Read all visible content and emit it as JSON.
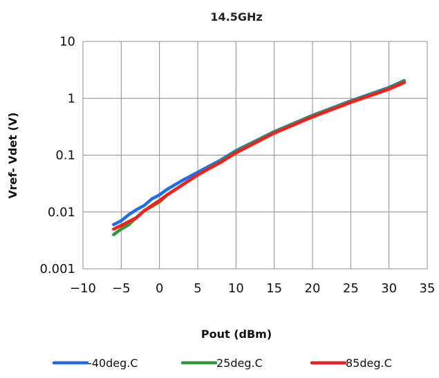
{
  "chart_data": {
    "type": "line",
    "title": "14.5GHz",
    "xlabel": "Pout (dBm)",
    "ylabel": "Vref- Vdet (V)",
    "xlim": [
      -10,
      35
    ],
    "ylim": [
      0.001,
      10
    ],
    "yscale": "log",
    "x_ticks": [
      "−10",
      "−5",
      "0",
      "5",
      "10",
      "15",
      "20",
      "25",
      "30",
      "35"
    ],
    "y_ticks": [
      "0.001",
      "0.01",
      "0.1",
      "1",
      "10"
    ],
    "grid": true,
    "legend_position": "bottom",
    "series": [
      {
        "name": "-40deg.C",
        "color": "#1a6ef5",
        "points": [
          [
            -6,
            0.006
          ],
          [
            -5,
            0.007
          ],
          [
            -4,
            0.009
          ],
          [
            -3,
            0.011
          ],
          [
            -2,
            0.013
          ],
          [
            -1,
            0.017
          ],
          [
            0,
            0.02
          ],
          [
            1,
            0.025
          ],
          [
            3,
            0.036
          ],
          [
            5,
            0.05
          ],
          [
            8,
            0.082
          ],
          [
            10,
            0.12
          ],
          [
            15,
            0.26
          ],
          [
            20,
            0.5
          ],
          [
            25,
            0.9
          ],
          [
            30,
            1.55
          ],
          [
            32,
            2.05
          ]
        ]
      },
      {
        "name": "25deg.C",
        "color": "#2e9a38",
        "points": [
          [
            -6,
            0.004
          ],
          [
            -5,
            0.005
          ],
          [
            -4,
            0.006
          ],
          [
            -3,
            0.008
          ],
          [
            -2,
            0.0105
          ],
          [
            -1,
            0.0125
          ],
          [
            0,
            0.015
          ],
          [
            1,
            0.02
          ],
          [
            3,
            0.03
          ],
          [
            5,
            0.045
          ],
          [
            8,
            0.078
          ],
          [
            10,
            0.115
          ],
          [
            15,
            0.255
          ],
          [
            20,
            0.49
          ],
          [
            25,
            0.88
          ],
          [
            30,
            1.5
          ],
          [
            32,
            2.0
          ]
        ]
      },
      {
        "name": "85deg.C",
        "color": "#ff1a1a",
        "points": [
          [
            -6,
            0.005
          ],
          [
            -5,
            0.0058
          ],
          [
            -4,
            0.0068
          ],
          [
            -3,
            0.008
          ],
          [
            -2,
            0.0105
          ],
          [
            -1,
            0.013
          ],
          [
            0,
            0.016
          ],
          [
            1,
            0.02
          ],
          [
            3,
            0.03
          ],
          [
            5,
            0.045
          ],
          [
            8,
            0.075
          ],
          [
            10,
            0.11
          ],
          [
            15,
            0.245
          ],
          [
            20,
            0.47
          ],
          [
            25,
            0.85
          ],
          [
            30,
            1.45
          ],
          [
            32,
            1.9
          ]
        ]
      }
    ]
  }
}
